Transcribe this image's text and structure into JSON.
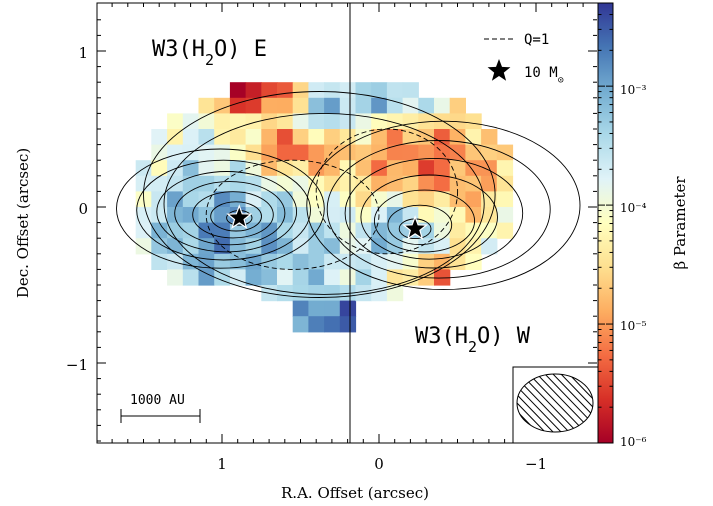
{
  "chart_data": {
    "type": "heatmap",
    "xlabel": "R.A. Offset (arcsec)",
    "ylabel": "Dec. Offset (arcsec)",
    "colorbar_label": "β Parameter",
    "xlim": [
      1.75,
      -1.5
    ],
    "ylim": [
      -1.5,
      1.3
    ],
    "x_ticks": [
      1,
      0,
      -1
    ],
    "x_tick_labels": [
      "1",
      "0",
      "−1"
    ],
    "y_ticks": [
      1,
      0,
      -1
    ],
    "y_tick_labels": [
      "1",
      "0",
      "−1"
    ],
    "colorbar_scale": "log",
    "colorbar_range": [
      1e-06,
      0.005
    ],
    "colorbar_ticks": [
      1e-06,
      1e-05,
      0.0001,
      0.001
    ],
    "colorbar_tick_labels": [
      "10⁻⁶",
      "10⁻⁵",
      "10⁻⁴",
      "10⁻³"
    ],
    "colormap": "RdYlBu",
    "source_labels": {
      "east": "W3(H₂O) E",
      "west": "W3(H₂O) W"
    },
    "legend": {
      "placement": "top-right",
      "line_label": "Q=1",
      "star_label": "10 M⊙"
    },
    "stars": [
      {
        "name": "W3(H2O) E",
        "x": 0.89,
        "y": -0.07
      },
      {
        "name": "W3(H2O) W",
        "x": -0.23,
        "y": -0.14
      }
    ],
    "dividing_line_x": 0.17,
    "scale_bar_label": "1000 AU",
    "beam": {
      "placement": "bottom-right",
      "major_arcsec": 0.48,
      "minor_arcsec": 0.36,
      "hatched": true
    }
  }
}
